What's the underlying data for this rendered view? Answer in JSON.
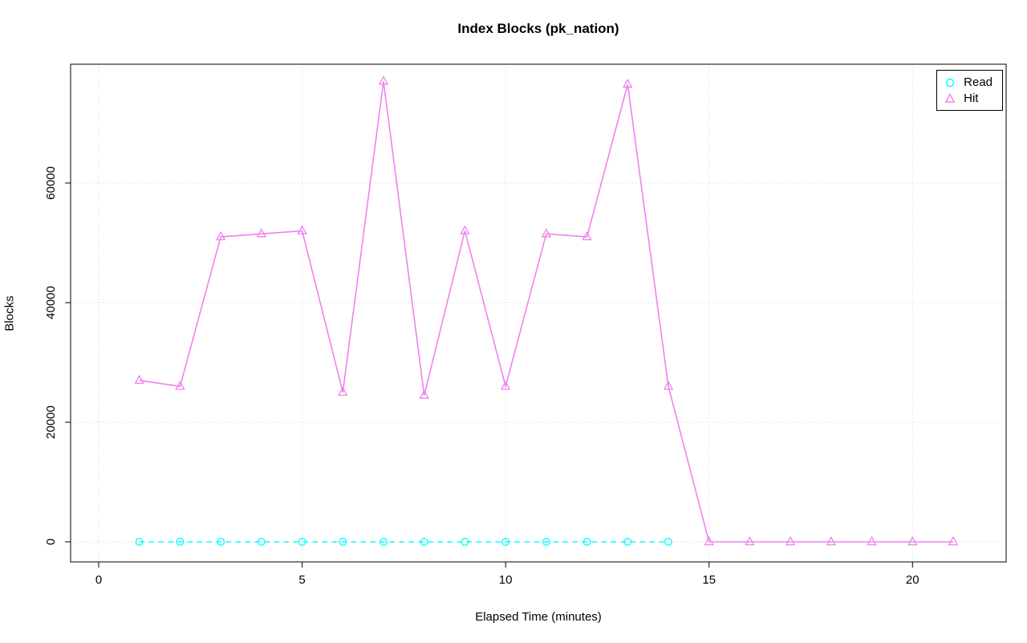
{
  "chart_data": {
    "type": "line",
    "title": "Index Blocks (pk_nation)",
    "xlabel": "Elapsed Time (minutes)",
    "ylabel": "Blocks",
    "xlim": [
      0,
      22
    ],
    "ylim": [
      0,
      80000
    ],
    "xticks": [
      0,
      5,
      10,
      15,
      20
    ],
    "yticks": [
      0,
      20000,
      40000,
      60000
    ],
    "grid": true,
    "grid_color": "#d3d3d3",
    "legend_position": "top-right",
    "series": [
      {
        "name": "Read",
        "color": "#00ffff",
        "marker": "circle",
        "line_style": "dashed",
        "x": [
          1,
          2,
          3,
          4,
          5,
          6,
          7,
          8,
          9,
          10,
          11,
          12,
          13,
          14
        ],
        "values": [
          0,
          0,
          0,
          0,
          0,
          0,
          0,
          0,
          0,
          0,
          0,
          0,
          0,
          0
        ]
      },
      {
        "name": "Hit",
        "color": "#ee82ee",
        "marker": "triangle",
        "line_style": "solid",
        "x": [
          1,
          2,
          3,
          4,
          5,
          6,
          7,
          8,
          9,
          10,
          11,
          12,
          13,
          14,
          15,
          16,
          17,
          18,
          19,
          20,
          21
        ],
        "values": [
          27000,
          26000,
          51000,
          51500,
          52000,
          25000,
          77000,
          24500,
          52000,
          26000,
          51500,
          51000,
          76500,
          26000,
          0,
          0,
          0,
          0,
          0,
          0,
          0
        ]
      }
    ]
  }
}
